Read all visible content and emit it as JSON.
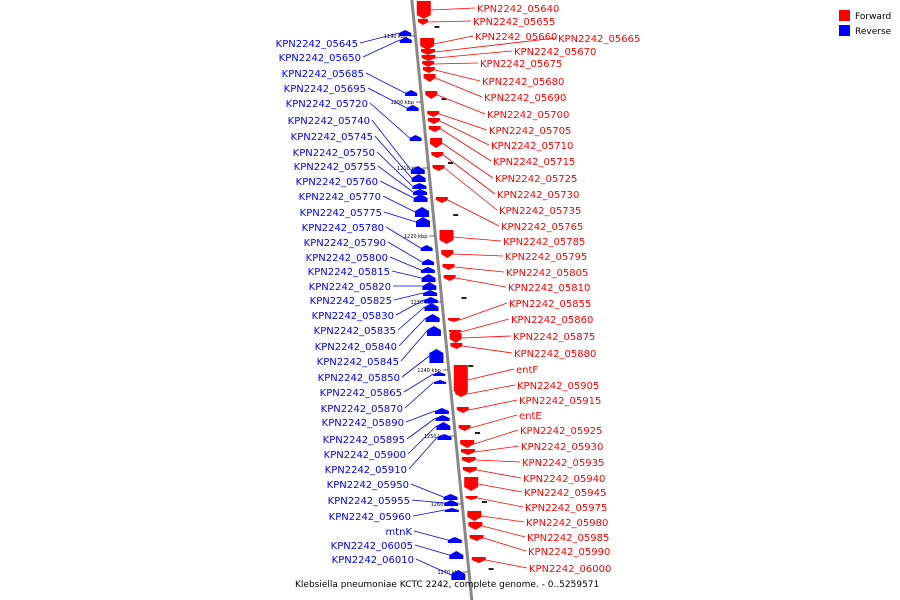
{
  "caption": "Klebsiella pneumoniae KCTC 2242, complete genome. - 0..5259571",
  "legend": [
    {
      "label": "Forward",
      "color": "#ff0000"
    },
    {
      "label": "Reverse",
      "color": "#0000ff"
    }
  ],
  "colors": {
    "forward": "#ff0000",
    "reverse": "#0000ff",
    "backbone": "#888888"
  },
  "ticks": [
    "1190 kbp",
    "1200 kbp",
    "1210 kbp",
    "1220 kbp",
    "1230 kbp",
    "1240 kbp",
    "1250 kbp",
    "1260 kbp",
    "1270 kbp"
  ],
  "forward_genes": [
    "KPN2242_05640",
    "KPN2242_05655",
    "KPN2242_05660",
    "KPN2242_05665",
    "KPN2242_05670",
    "KPN2242_05675",
    "KPN2242_05680",
    "KPN2242_05690",
    "KPN2242_05700",
    "KPN2242_05705",
    "KPN2242_05710",
    "KPN2242_05715",
    "KPN2242_05725",
    "KPN2242_05730",
    "KPN2242_05735",
    "KPN2242_05765",
    "KPN2242_05785",
    "KPN2242_05795",
    "KPN2242_05805",
    "KPN2242_05810",
    "KPN2242_05855",
    "KPN2242_05860",
    "KPN2242_05875",
    "KPN2242_05880",
    "entF",
    "KPN2242_05905",
    "KPN2242_05915",
    "entE",
    "KPN2242_05925",
    "KPN2242_05930",
    "KPN2242_05935",
    "KPN2242_05940",
    "KPN2242_05945",
    "KPN2242_05975",
    "KPN2242_05980",
    "KPN2242_05985",
    "KPN2242_05990",
    "KPN2242_06000"
  ],
  "reverse_genes": [
    "KPN2242_05645",
    "KPN2242_05650",
    "KPN2242_05685",
    "KPN2242_05695",
    "KPN2242_05720",
    "KPN2242_05740",
    "KPN2242_05745",
    "KPN2242_05750",
    "KPN2242_05755",
    "KPN2242_05760",
    "KPN2242_05770",
    "KPN2242_05775",
    "KPN2242_05780",
    "KPN2242_05790",
    "KPN2242_05800",
    "KPN2242_05815",
    "KPN2242_05820",
    "KPN2242_05825",
    "KPN2242_05830",
    "KPN2242_05835",
    "KPN2242_05840",
    "KPN2242_05845",
    "KPN2242_05850",
    "KPN2242_05865",
    "KPN2242_05870",
    "KPN2242_05890",
    "KPN2242_05895",
    "KPN2242_05900",
    "KPN2242_05910",
    "KPN2242_05950",
    "KPN2242_05955",
    "KPN2242_05960",
    "mtnK",
    "KPN2242_06005",
    "KPN2242_06010"
  ]
}
